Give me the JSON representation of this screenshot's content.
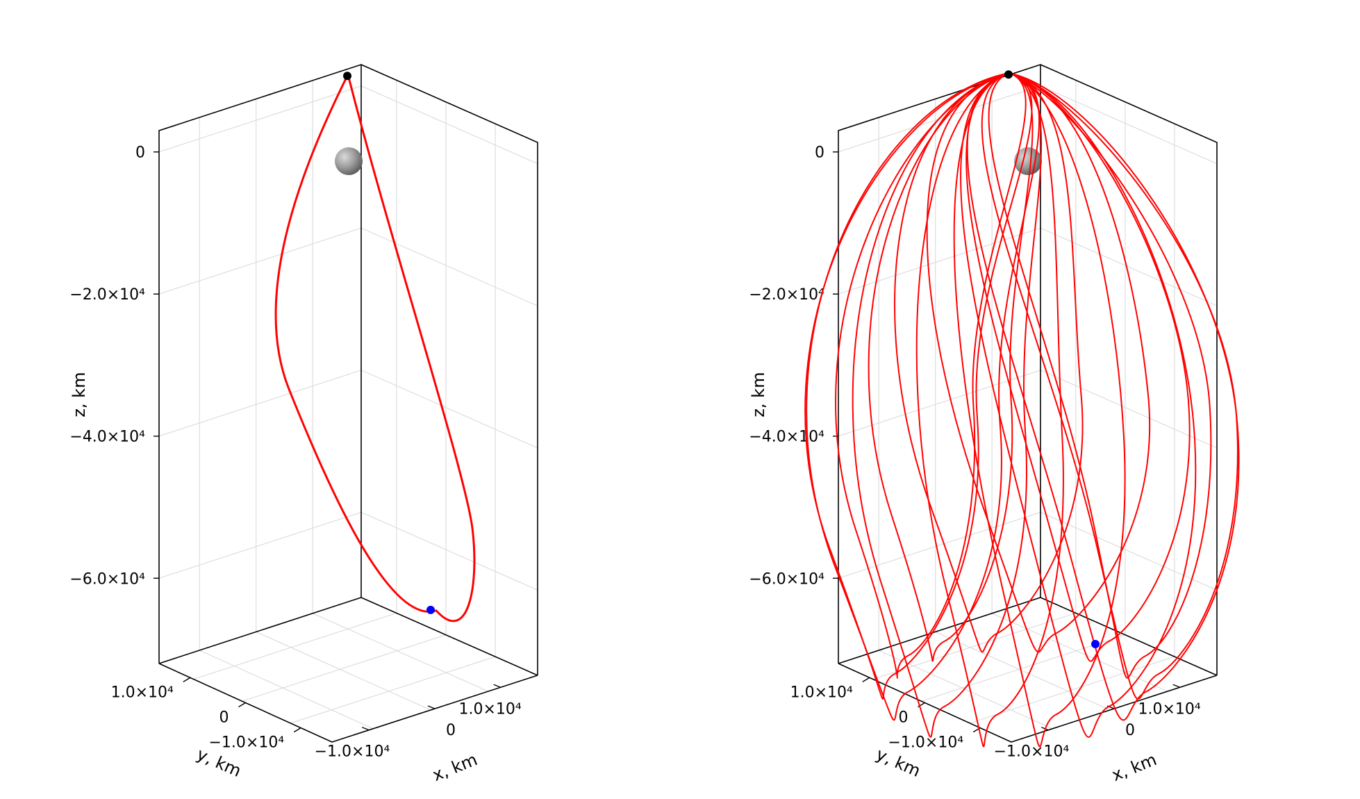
{
  "chart_data": [
    {
      "type": "3d-line",
      "title": "",
      "xlabel": "x, km",
      "ylabel": "y, km",
      "zlabel": "z, km",
      "z_ticks": [
        {
          "value": 0,
          "label": "0"
        },
        {
          "value": -20000,
          "label": "−2.0×10⁴"
        },
        {
          "value": -40000,
          "label": "−4.0×10⁴"
        },
        {
          "value": -60000,
          "label": "−6.0×10⁴"
        }
      ],
      "x_ticks": [
        {
          "value": -10000,
          "label": "−1.0×10⁴"
        },
        {
          "value": 0,
          "label": "0"
        },
        {
          "value": 10000,
          "label": "1.0×10⁴"
        }
      ],
      "y_ticks": [
        {
          "value": 10000,
          "label": "1.0×10⁴"
        },
        {
          "value": 0,
          "label": "0"
        },
        {
          "value": -10000,
          "label": "−1.0×10⁴"
        }
      ],
      "grid": true,
      "trajectory_color": "#ff0000",
      "orbit": {
        "apoapsis_z": -67000,
        "periapsis_z": 2000,
        "revolutions": 1,
        "line_width": 3
      },
      "markers": [
        {
          "name": "start",
          "color": "#000000"
        },
        {
          "name": "end",
          "color": "#0000ff"
        }
      ],
      "central_body": {
        "color": "#888888",
        "position": [
          0,
          0,
          0
        ]
      }
    },
    {
      "type": "3d-line",
      "title": "",
      "xlabel": "x, km",
      "ylabel": "y, km",
      "zlabel": "z, km",
      "z_ticks": [
        {
          "value": 0,
          "label": "0"
        },
        {
          "value": -20000,
          "label": "−2.0×10⁴"
        },
        {
          "value": -40000,
          "label": "−4.0×10⁴"
        },
        {
          "value": -60000,
          "label": "−6.0×10⁴"
        }
      ],
      "x_ticks": [
        {
          "value": -10000,
          "label": "−1.0×10⁴"
        },
        {
          "value": 0,
          "label": "0"
        },
        {
          "value": 10000,
          "label": "1.0×10⁴"
        }
      ],
      "y_ticks": [
        {
          "value": 10000,
          "label": "1.0×10⁴"
        },
        {
          "value": 0,
          "label": "0"
        },
        {
          "value": -10000,
          "label": "−1.0×10⁴"
        }
      ],
      "grid": true,
      "trajectory_color": "#ff0000",
      "orbit": {
        "apoapsis_z": -69000,
        "periapsis_z": 2000,
        "revolutions": 14,
        "line_width": 2
      },
      "markers": [
        {
          "name": "start",
          "color": "#000000"
        },
        {
          "name": "end",
          "color": "#0000ff"
        }
      ],
      "central_body": {
        "color": "#888888",
        "position": [
          0,
          0,
          0
        ]
      }
    }
  ]
}
